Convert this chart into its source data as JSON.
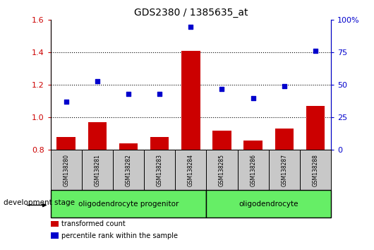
{
  "title": "GDS2380 / 1385635_at",
  "samples": [
    "GSM138280",
    "GSM138281",
    "GSM138282",
    "GSM138283",
    "GSM138284",
    "GSM138285",
    "GSM138286",
    "GSM138287",
    "GSM138288"
  ],
  "transformed_count": [
    0.88,
    0.97,
    0.84,
    0.88,
    1.41,
    0.92,
    0.86,
    0.93,
    1.07
  ],
  "percentile_rank": [
    37,
    53,
    43,
    43,
    95,
    47,
    40,
    49,
    76
  ],
  "ylim_left": [
    0.8,
    1.6
  ],
  "ylim_right": [
    0,
    100
  ],
  "yticks_left": [
    0.8,
    1.0,
    1.2,
    1.4,
    1.6
  ],
  "yticks_right": [
    0,
    25,
    50,
    75,
    100
  ],
  "groups": [
    {
      "label": "oligodendrocyte progenitor",
      "start": 0,
      "end": 4
    },
    {
      "label": "oligodendrocyte",
      "start": 5,
      "end": 8
    }
  ],
  "bar_color": "#CC0000",
  "scatter_color": "#0000CC",
  "axis_left_color": "#CC0000",
  "axis_right_color": "#0000CC",
  "legend_bar_label": "transformed count",
  "legend_scatter_label": "percentile rank within the sample",
  "development_stage_label": "development stage",
  "group_box_color": "#66EE66",
  "sample_box_color": "#C8C8C8",
  "group_border_color": "#000000",
  "gridline_vals": [
    1.0,
    1.2,
    1.4
  ]
}
